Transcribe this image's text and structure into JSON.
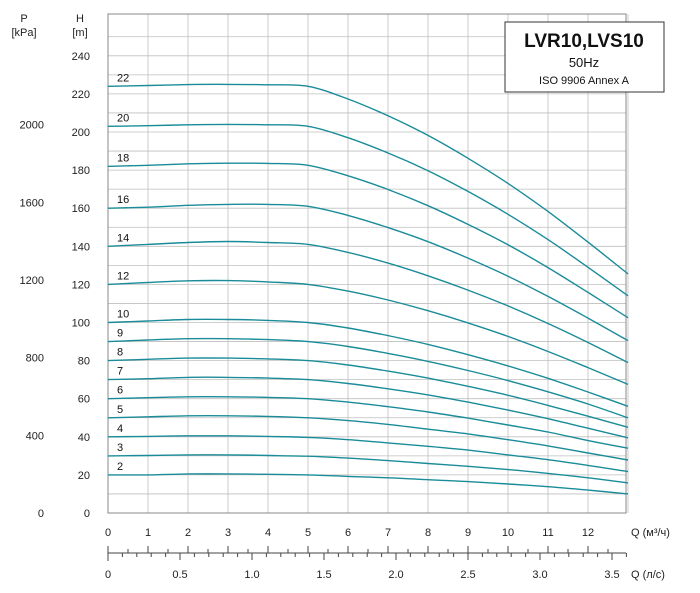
{
  "chart_data": {
    "type": "line",
    "title": "LVR10,LVS10",
    "subtitle": "50Hz",
    "standard": "ISO 9906 Annex A",
    "y_left_outer_label": "P",
    "y_left_outer_unit": "[kPa]",
    "y_left_inner_label": "H",
    "y_left_inner_unit": "[m]",
    "x_label_m3h": "Q (м³/ч)",
    "x_label_ls": "Q (л/с)",
    "xlim": [
      0,
      13
    ],
    "ylim": [
      0,
      250
    ],
    "x_ticks": [
      "0",
      "1",
      "2",
      "3",
      "4",
      "5",
      "6",
      "7",
      "8",
      "9",
      "10",
      "11",
      "12"
    ],
    "x_ls_ticks": [
      {
        "v": 0,
        "label": "0"
      },
      {
        "v": 0.5,
        "label": "0.5"
      },
      {
        "v": 1.0,
        "label": "1.0"
      },
      {
        "v": 1.5,
        "label": "1.5"
      },
      {
        "v": 2.0,
        "label": "2.0"
      },
      {
        "v": 2.5,
        "label": "2.5"
      },
      {
        "v": 3.0,
        "label": "3.0"
      },
      {
        "v": 3.5,
        "label": "3.5"
      }
    ],
    "h_ticks": [
      "0",
      "20",
      "40",
      "60",
      "80",
      "100",
      "120",
      "140",
      "160",
      "180",
      "200",
      "220",
      "240"
    ],
    "p_ticks": [
      {
        "v": 0,
        "label": "0"
      },
      {
        "v": 400,
        "label": "400"
      },
      {
        "v": 800,
        "label": "800"
      },
      {
        "v": 1200,
        "label": "1200"
      },
      {
        "v": 1600,
        "label": "1600"
      },
      {
        "v": 2000,
        "label": "2000"
      }
    ],
    "grid": true,
    "x": [
      0,
      1,
      2,
      3,
      4,
      5,
      6,
      7,
      8,
      9,
      10,
      11,
      12,
      13
    ],
    "series": [
      {
        "name": "2",
        "values": [
          20.0,
          20.0,
          20.5,
          20.5,
          20.3,
          20.0,
          19.2,
          18.5,
          17.5,
          16.5,
          15.2,
          13.8,
          12.0,
          10.0
        ]
      },
      {
        "name": "3",
        "values": [
          30.0,
          30.2,
          30.5,
          30.5,
          30.2,
          29.8,
          28.8,
          27.5,
          26.0,
          24.5,
          22.8,
          20.8,
          18.5,
          15.8
        ]
      },
      {
        "name": "4",
        "values": [
          40.0,
          40.2,
          40.5,
          40.5,
          40.2,
          39.7,
          38.5,
          36.8,
          35.0,
          33.0,
          30.5,
          28.0,
          25.0,
          21.8
        ]
      },
      {
        "name": "5",
        "values": [
          50.0,
          50.5,
          51.0,
          51.0,
          50.7,
          50.0,
          48.5,
          46.5,
          44.0,
          41.5,
          38.5,
          35.2,
          31.5,
          27.8
        ]
      },
      {
        "name": "6",
        "values": [
          60.0,
          60.5,
          61.0,
          61.0,
          60.7,
          60.0,
          58.2,
          55.8,
          53.0,
          49.8,
          46.2,
          42.5,
          38.0,
          34.0
        ]
      },
      {
        "name": "7",
        "values": [
          70.0,
          70.5,
          71.2,
          71.2,
          70.8,
          70.0,
          68.0,
          65.2,
          62.0,
          58.2,
          54.0,
          49.5,
          44.5,
          39.5
        ]
      },
      {
        "name": "8",
        "values": [
          80.0,
          80.7,
          81.3,
          81.3,
          80.9,
          80.0,
          77.7,
          74.5,
          70.8,
          66.5,
          61.8,
          56.5,
          50.8,
          45.0
        ]
      },
      {
        "name": "9",
        "values": [
          90.0,
          90.8,
          91.5,
          91.5,
          91.0,
          90.0,
          87.4,
          83.8,
          79.6,
          74.8,
          69.5,
          63.6,
          57.2,
          50.0
        ]
      },
      {
        "name": "10",
        "values": [
          100.0,
          100.8,
          101.6,
          101.6,
          101.1,
          100.0,
          97.1,
          93.1,
          88.5,
          83.1,
          77.2,
          70.7,
          63.5,
          56.0
        ]
      },
      {
        "name": "12",
        "values": [
          120.0,
          121.0,
          121.9,
          122.0,
          121.3,
          120.0,
          116.5,
          111.8,
          106.2,
          99.8,
          92.7,
          84.8,
          76.3,
          67.5
        ]
      },
      {
        "name": "14",
        "values": [
          140.0,
          141.0,
          142.0,
          142.5,
          142.0,
          141.0,
          136.8,
          131.2,
          124.5,
          117.0,
          108.7,
          99.5,
          89.5,
          79.0
        ]
      },
      {
        "name": "16",
        "values": [
          160.0,
          160.5,
          161.5,
          162.0,
          162.0,
          161.0,
          156.2,
          149.8,
          142.4,
          133.8,
          124.3,
          113.7,
          102.3,
          90.5
        ]
      },
      {
        "name": "18",
        "values": [
          182.0,
          182.5,
          183.3,
          183.6,
          183.5,
          182.5,
          177.0,
          169.8,
          161.3,
          151.5,
          140.8,
          128.8,
          115.8,
          102.5
        ]
      },
      {
        "name": "20",
        "values": [
          203.0,
          203.3,
          203.8,
          204.0,
          203.8,
          203.0,
          197.0,
          189.0,
          179.7,
          168.8,
          156.8,
          143.5,
          129.0,
          114.0
        ]
      },
      {
        "name": "22",
        "values": [
          224.0,
          224.4,
          224.9,
          225.0,
          224.8,
          224.0,
          217.3,
          208.5,
          198.2,
          186.2,
          173.0,
          158.3,
          142.2,
          125.5
        ]
      }
    ]
  }
}
